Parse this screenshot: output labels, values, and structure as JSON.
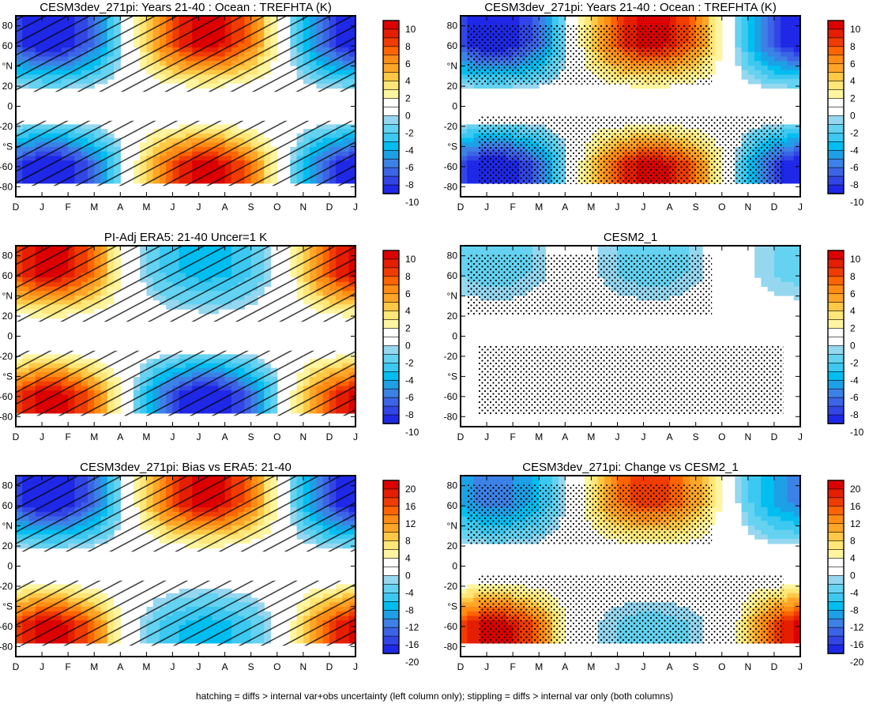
{
  "footnote": "hatching = diffs > internal var+obs uncertainty (left column only); stippling = diffs > internal var only (both columns)",
  "colors": {
    "palette": [
      "#1e28e6",
      "#3246e6",
      "#3c64e6",
      "#3c82e6",
      "#1ea0e6",
      "#00bef0",
      "#3cc8f0",
      "#64d2f0",
      "#96d7f0",
      "#ffffff",
      "#ffffff",
      "#fff5a0",
      "#ffe678",
      "#ffc846",
      "#ffa528",
      "#ff8c14",
      "#ff6400",
      "#f03c00",
      "#e61e00",
      "#dc0000"
    ]
  },
  "chart_data": [
    {
      "type": "heatmap",
      "title": "CESM3dev_271pi: Years 21-40 : Ocean : TREFHTA (K)",
      "x_ticklabels": [
        "D",
        "J",
        "F",
        "M",
        "A",
        "M",
        "J",
        "J",
        "A",
        "S",
        "O",
        "N",
        "D",
        "J"
      ],
      "y_ticklabels": [
        "80",
        "60",
        "°N",
        "20",
        "0",
        "-20",
        "°S",
        "-60",
        "-80"
      ],
      "colorbar_labels": [
        "10",
        "8",
        "6",
        "4",
        "2",
        "0",
        "-2",
        "-4",
        "-6",
        "-8",
        "-10"
      ],
      "overlay": "hatching",
      "approx_peak_values": {
        "north_winter": -10,
        "north_summer": 10,
        "south_winter": 10,
        "south_summer": -10
      }
    },
    {
      "type": "heatmap",
      "title": "CESM3dev_271pi: Years 21-40 : Ocean : TREFHTA (K)",
      "x_ticklabels": [
        "D",
        "J",
        "F",
        "M",
        "A",
        "M",
        "J",
        "J",
        "A",
        "S",
        "O",
        "N",
        "D",
        "J"
      ],
      "y_ticklabels": [
        "80",
        "60",
        "°N",
        "20",
        "0",
        "-20",
        "°S",
        "-60",
        "-80"
      ],
      "colorbar_labels": [
        "10",
        "8",
        "6",
        "4",
        "2",
        "0",
        "-2",
        "-4",
        "-6",
        "-8",
        "-10"
      ],
      "overlay": "stippling",
      "approx_peak_values": {
        "north_winter": -10,
        "north_summer": 10,
        "south_winter": 10,
        "south_summer": -10
      }
    },
    {
      "type": "heatmap",
      "title": "PI-Adj ERA5: 21-40 Uncer=1 K",
      "x_ticklabels": [
        "D",
        "J",
        "F",
        "M",
        "A",
        "M",
        "J",
        "J",
        "A",
        "S",
        "O",
        "N",
        "D",
        "J"
      ],
      "y_ticklabels": [
        "80",
        "60",
        "°N",
        "20",
        "0",
        "-20",
        "°S",
        "-60",
        "-80"
      ],
      "colorbar_labels": [
        "10",
        "8",
        "6",
        "4",
        "2",
        "0",
        "-2",
        "-4",
        "-6",
        "-8",
        "-10"
      ],
      "overlay": "hatching",
      "approx_peak_values": {
        "north_winter": 10,
        "north_summer": -4,
        "south_winter": -10,
        "south_summer": 10
      }
    },
    {
      "type": "heatmap",
      "title": "CESM2_1",
      "x_ticklabels": [
        "D",
        "J",
        "F",
        "M",
        "A",
        "M",
        "J",
        "J",
        "A",
        "S",
        "O",
        "N",
        "D",
        "J"
      ],
      "y_ticklabels": [
        "80",
        "60",
        "°N",
        "20",
        "0",
        "-20",
        "°S",
        "-60",
        "-80"
      ],
      "colorbar_labels": [
        "10",
        "8",
        "6",
        "4",
        "2",
        "0",
        "-2",
        "-4",
        "-6",
        "-8",
        "-10"
      ],
      "overlay": "stippling",
      "approx_peak_values": {
        "north_winter": -2,
        "north_summer": -2,
        "south_winter": 0,
        "south_summer": 0
      }
    },
    {
      "type": "heatmap",
      "title": "CESM3dev_271pi: Bias vs ERA5: 21-40",
      "x_ticklabels": [
        "D",
        "J",
        "F",
        "M",
        "A",
        "M",
        "J",
        "J",
        "A",
        "S",
        "O",
        "N",
        "D",
        "J"
      ],
      "y_ticklabels": [
        "80",
        "60",
        "°N",
        "20",
        "0",
        "-20",
        "°S",
        "-60",
        "-80"
      ],
      "colorbar_labels": [
        "20",
        "16",
        "12",
        "8",
        "4",
        "0",
        "-4",
        "-8",
        "-12",
        "-16",
        "-20"
      ],
      "overlay": "hatching",
      "approx_peak_values": {
        "north_winter": -20,
        "north_summer": 20,
        "south_winter": -8,
        "south_summer": 20
      }
    },
    {
      "type": "heatmap",
      "title": "CESM3dev_271pi: Change vs CESM2_1",
      "x_ticklabels": [
        "D",
        "J",
        "F",
        "M",
        "A",
        "M",
        "J",
        "J",
        "A",
        "S",
        "O",
        "N",
        "D",
        "J"
      ],
      "y_ticklabels": [
        "80",
        "60",
        "°N",
        "20",
        "0",
        "-20",
        "°S",
        "-60",
        "-80"
      ],
      "colorbar_labels": [
        "20",
        "16",
        "12",
        "8",
        "4",
        "0",
        "-4",
        "-8",
        "-12",
        "-16",
        "-20"
      ],
      "overlay": "stippling",
      "approx_peak_values": {
        "north_winter": -12,
        "north_summer": 16,
        "south_winter": -4,
        "south_summer": 20
      }
    }
  ]
}
